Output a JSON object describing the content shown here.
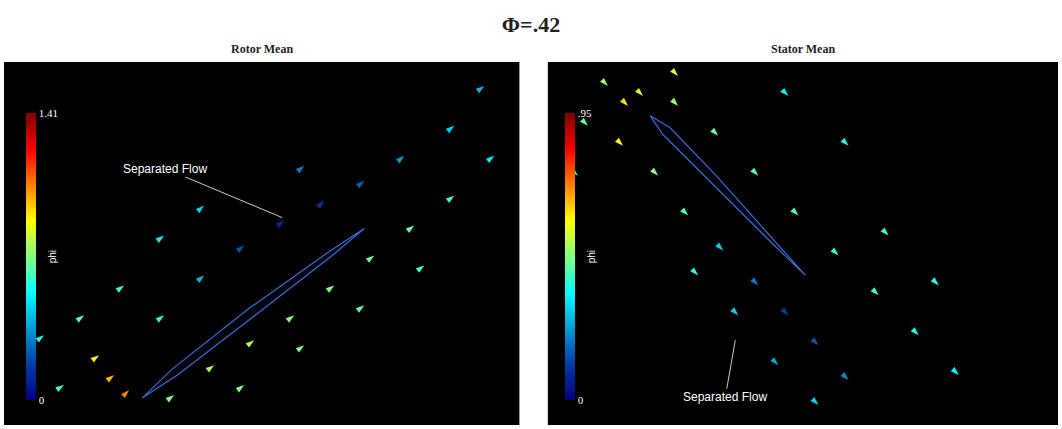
{
  "title": "Φ=.42",
  "chart_data": [
    {
      "type": "quiver",
      "title": "Rotor Mean",
      "tick_labels": false,
      "xlim": [
        0,
        515
      ],
      "ylim": [
        0,
        364
      ],
      "colorbar": {
        "title": "phi",
        "range": [
          0,
          1.41
        ],
        "ticks": [
          0,
          1.41
        ]
      },
      "blade": {
        "x": [
          138,
          168,
          245,
          325,
          360,
          328,
          251,
          173,
          138
        ],
        "y": [
          27,
          56,
          117,
          174,
          197,
          170,
          110,
          50,
          27
        ]
      },
      "vectors": {
        "x": [
          110,
          125,
          95,
          60,
          40,
          80,
          120,
          170,
          210,
          250,
          290,
          330,
          370,
          410,
          450,
          240,
          300,
          360,
          420,
          160,
          200,
          240,
          280,
          320,
          360,
          400,
          450,
          490,
          300,
          200,
          480,
          160
        ],
        "y": [
          50,
          35,
          70,
          40,
          90,
          110,
          140,
          30,
          60,
          85,
          110,
          140,
          170,
          200,
          230,
          40,
          80,
          120,
          160,
          110,
          150,
          180,
          205,
          225,
          245,
          270,
          300,
          270,
          260,
          220,
          340,
          190
        ],
        "u": [
          0.8,
          0.7,
          0.8,
          0.8,
          0.8,
          0.8,
          0.8,
          0.8,
          0.8,
          0.8,
          0.8,
          0.8,
          0.8,
          0.8,
          0.8,
          0.8,
          0.8,
          0.8,
          0.8,
          0.8,
          0.7,
          0.6,
          0.5,
          0.5,
          0.6,
          0.7,
          0.8,
          0.8,
          0.6,
          0.7,
          0.8,
          0.8
        ],
        "v": [
          0.6,
          0.7,
          0.6,
          0.5,
          0.6,
          0.6,
          0.6,
          0.6,
          0.6,
          0.6,
          0.6,
          0.6,
          0.6,
          0.6,
          0.6,
          0.6,
          0.6,
          0.6,
          0.6,
          0.6,
          0.6,
          0.5,
          0.4,
          0.5,
          0.5,
          0.6,
          0.6,
          0.6,
          0.5,
          0.6,
          0.6,
          0.6
        ],
        "phi": [
          0.98,
          1.05,
          0.9,
          0.6,
          0.55,
          0.65,
          0.6,
          0.7,
          0.75,
          0.78,
          0.72,
          0.7,
          0.68,
          0.66,
          0.62,
          0.7,
          0.7,
          0.65,
          0.6,
          0.55,
          0.4,
          0.22,
          0.12,
          0.15,
          0.25,
          0.35,
          0.45,
          0.5,
          0.3,
          0.45,
          0.4,
          0.5
        ]
      },
      "annotations": [
        {
          "text": "Separated Flow",
          "x": 278,
          "y": 208
        }
      ]
    },
    {
      "type": "quiver",
      "title": "Stator Mean",
      "tick_labels": false,
      "xlim": [
        0,
        509
      ],
      "ylim": [
        0,
        364
      ],
      "colorbar": {
        "title": "phi",
        "range": [
          0,
          0.95
        ],
        "ticks": [
          0,
          {
            "value": 0.95,
            "label": ".95"
          }
        ]
      },
      "blade": {
        "x": [
          102,
          122,
          168,
          227,
          257,
          225,
          162,
          115,
          102
        ],
        "y": [
          310,
          298,
          250,
          183,
          150,
          181,
          244,
          291,
          310
        ]
      },
      "vectors": {
        "x": [
          80,
          75,
          95,
          60,
          40,
          130,
          170,
          210,
          250,
          290,
          330,
          370,
          410,
          110,
          140,
          175,
          210,
          240,
          270,
          300,
          190,
          230,
          270,
          150,
          340,
          390,
          240,
          300,
          30,
          130
        ],
        "y": [
          320,
          280,
          330,
          340,
          300,
          320,
          290,
          250,
          210,
          170,
          130,
          90,
          50,
          250,
          210,
          175,
          140,
          110,
          80,
          45,
          110,
          60,
          20,
          150,
          190,
          140,
          330,
          280,
          250,
          350
        ],
        "u": [
          0.7,
          0.7,
          0.7,
          0.7,
          0.7,
          0.7,
          0.7,
          0.7,
          0.7,
          0.7,
          0.7,
          0.7,
          0.7,
          0.7,
          0.7,
          0.6,
          0.5,
          0.5,
          0.5,
          0.6,
          0.6,
          0.6,
          0.6,
          0.7,
          0.7,
          0.7,
          0.7,
          0.7,
          0.7,
          0.7
        ],
        "v": [
          -0.7,
          -0.7,
          -0.7,
          -0.7,
          -0.7,
          -0.7,
          -0.7,
          -0.7,
          -0.7,
          -0.7,
          -0.7,
          -0.7,
          -0.7,
          -0.7,
          -0.7,
          -0.6,
          -0.5,
          -0.5,
          -0.5,
          -0.6,
          -0.6,
          -0.6,
          -0.6,
          -0.7,
          -0.7,
          -0.7,
          -0.7,
          -0.7,
          -0.7,
          -0.7
        ],
        "phi": [
          0.62,
          0.6,
          0.55,
          0.5,
          0.45,
          0.5,
          0.45,
          0.42,
          0.42,
          0.4,
          0.4,
          0.38,
          0.35,
          0.48,
          0.42,
          0.3,
          0.2,
          0.12,
          0.15,
          0.22,
          0.3,
          0.25,
          0.3,
          0.38,
          0.4,
          0.38,
          0.35,
          0.38,
          0.4,
          0.55
        ]
      },
      "annotations": [
        {
          "text": "Separated Flow",
          "x": 187,
          "y": 85
        }
      ]
    }
  ]
}
